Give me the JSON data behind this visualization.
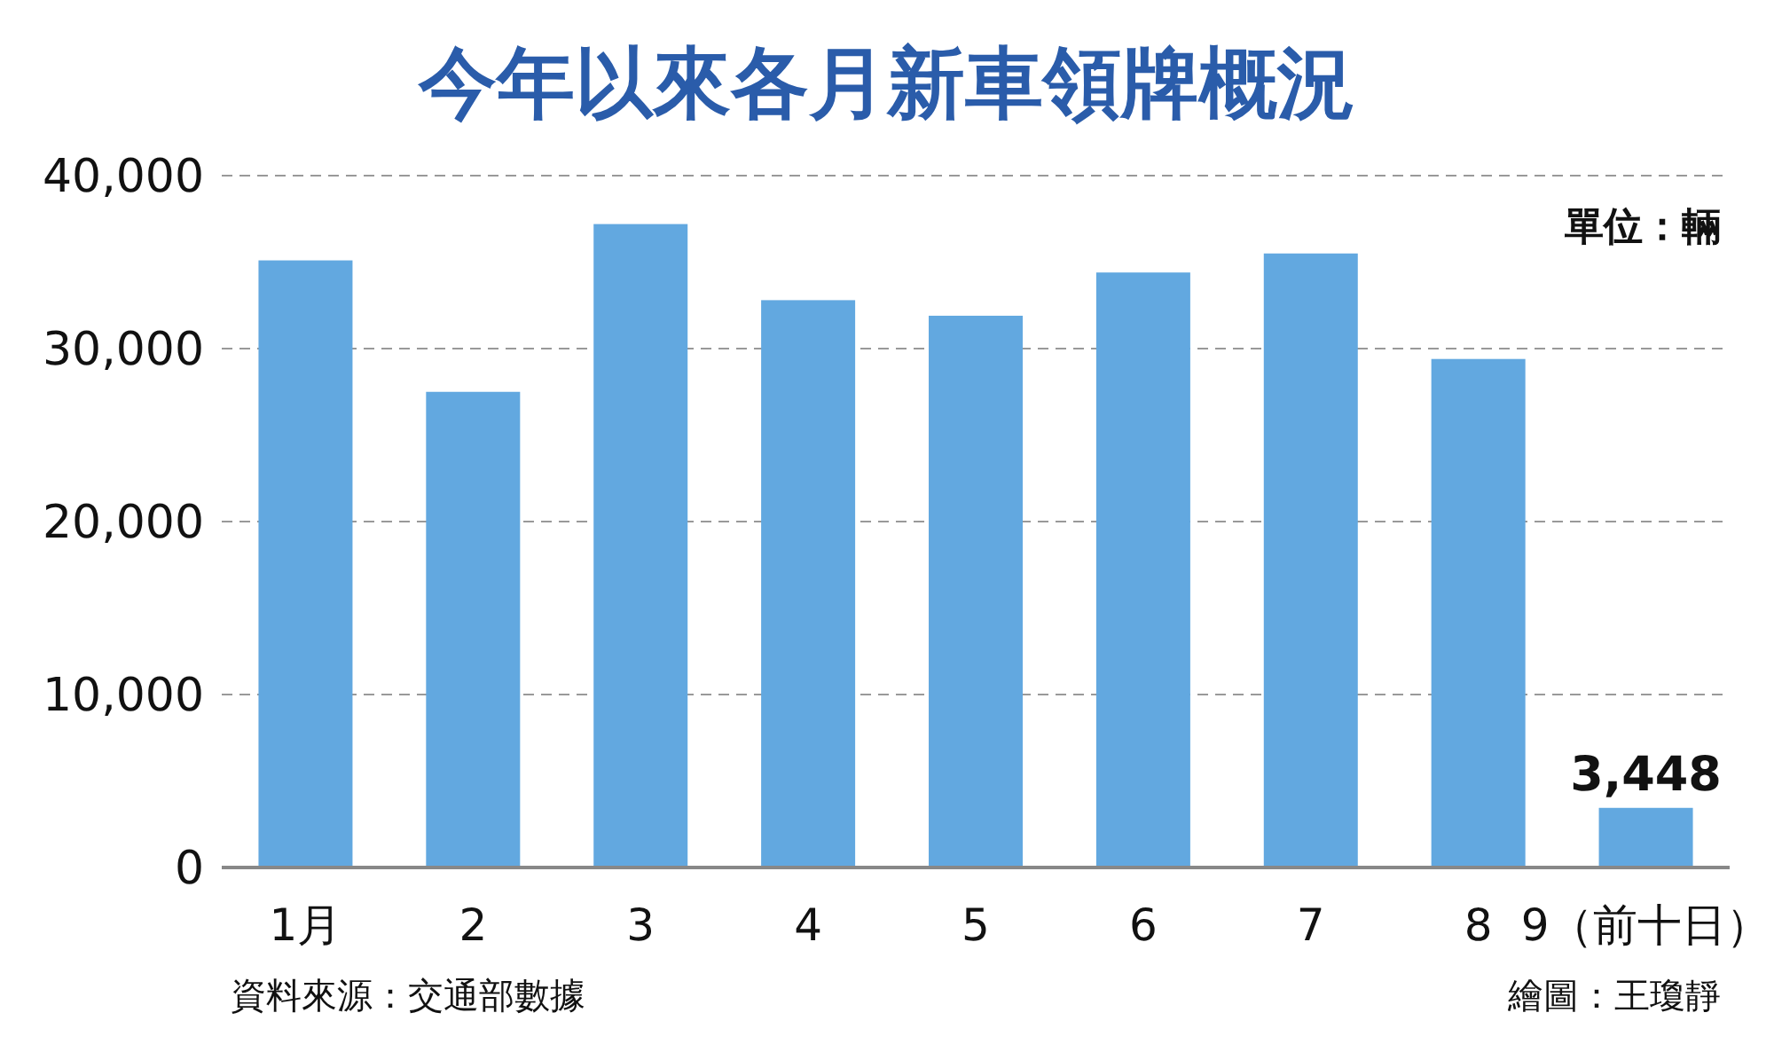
{
  "chart_data": {
    "type": "bar",
    "title": "今年以來各月新車領牌概況",
    "categories": [
      "1月",
      "2",
      "3",
      "4",
      "5",
      "6",
      "7",
      "8",
      "9（前十日）"
    ],
    "values": [
      35100,
      27500,
      37200,
      32800,
      31900,
      34400,
      35500,
      29400,
      3448
    ],
    "value_labels": [
      null,
      null,
      null,
      null,
      null,
      null,
      null,
      null,
      "3,448"
    ],
    "color": "#62a8e0",
    "ylim": [
      0,
      40000
    ],
    "yticks": [
      0,
      {
        "value": 10000,
        "label": "10,000"
      },
      {
        "value": 20000,
        "label": "20,000"
      },
      {
        "value": 30000,
        "label": "30,000"
      },
      {
        "value": 40000,
        "label": "40,000"
      }
    ],
    "grid": "y",
    "annotations": [
      "單位：輛",
      "資料來源：交通部數據",
      "繪圖：王瓊靜"
    ]
  }
}
